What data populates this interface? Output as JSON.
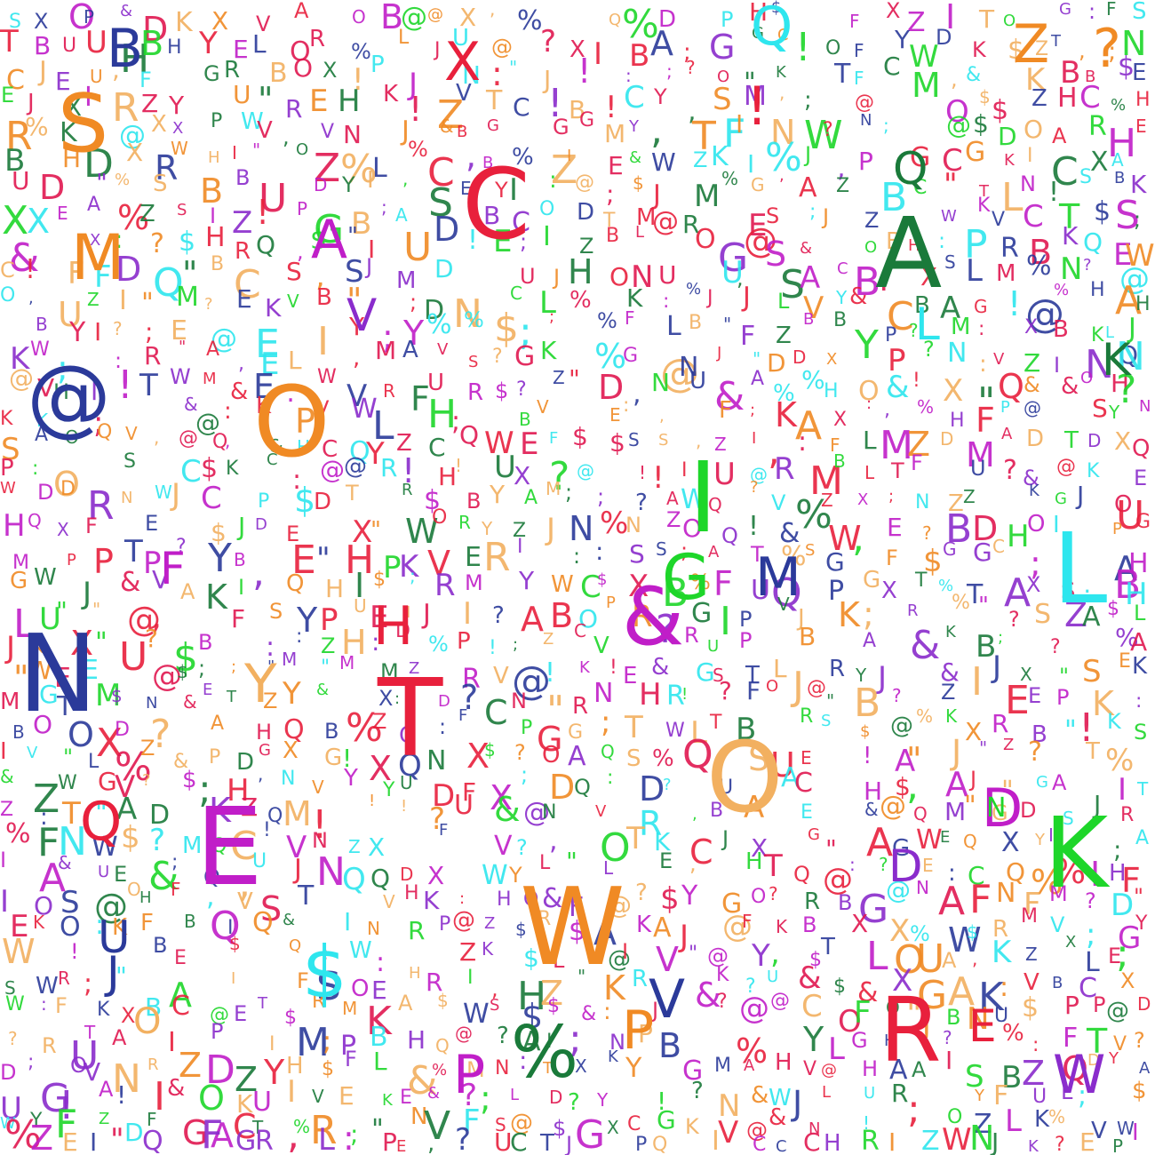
{
  "image": {
    "background": "#ffffff",
    "palette": {
      "red": "#e8203c",
      "orange": "#f08a24",
      "tan": "#f2b060",
      "magenta": "#c01ec8",
      "purple": "#8a2ccc",
      "navy": "#2b3a9a",
      "cyan": "#2ee6ee",
      "green": "#1ed62a",
      "darkgreen": "#1a7a3a",
      "crimson": "#e01850"
    },
    "prominent_glyphs": [
      {
        "char": "@",
        "color": "navy"
      },
      {
        "char": "C",
        "color": "red"
      },
      {
        "char": "A",
        "color": "darkgreen"
      },
      {
        "char": "S",
        "color": "orange"
      },
      {
        "char": "O",
        "color": "orange"
      },
      {
        "char": "O",
        "color": "tan"
      },
      {
        "char": "I",
        "color": "green"
      },
      {
        "char": "N",
        "color": "navy"
      },
      {
        "char": "T",
        "color": "red"
      },
      {
        "char": "&",
        "color": "magenta"
      },
      {
        "char": "E",
        "color": "magenta"
      },
      {
        "char": "W",
        "color": "orange"
      },
      {
        "char": "O",
        "color": "tan"
      },
      {
        "char": "R",
        "color": "red"
      },
      {
        "char": "K",
        "color": "green"
      },
      {
        "char": "L",
        "color": "cyan"
      },
      {
        "char": "%",
        "color": "darkgreen"
      },
      {
        "char": "$",
        "color": "cyan"
      },
      {
        "char": "Q",
        "color": "red"
      },
      {
        "char": "M",
        "color": "orange"
      },
      {
        "char": "Z",
        "color": "orange"
      },
      {
        "char": "B",
        "color": "navy"
      },
      {
        "char": "Q",
        "color": "cyan"
      },
      {
        "char": "P",
        "color": "orange"
      },
      {
        "char": "V",
        "color": "navy"
      },
      {
        "char": "D",
        "color": "magenta"
      },
      {
        "char": "U",
        "color": "navy"
      },
      {
        "char": "G",
        "color": "green"
      },
      {
        "char": "H",
        "color": "red"
      },
      {
        "char": "Y",
        "color": "tan"
      },
      {
        "char": "X",
        "color": "red"
      },
      {
        "char": "F",
        "color": "magenta"
      },
      {
        "char": "J",
        "color": "navy"
      },
      {
        "char": "?",
        "color": "orange"
      },
      {
        "char": "!",
        "color": "red"
      },
      {
        "char": "W",
        "color": "purple"
      },
      {
        "char": "A",
        "color": "magenta"
      },
      {
        "char": "N",
        "color": "green"
      },
      {
        "char": "Q",
        "color": "darkgreen"
      },
      {
        "char": "P",
        "color": "magenta"
      },
      {
        "char": "V",
        "color": "purple"
      },
      {
        "char": "K",
        "color": "darkgreen"
      },
      {
        "char": "D",
        "color": "purple"
      },
      {
        "char": "E",
        "color": "red"
      },
      {
        "char": "M",
        "color": "navy"
      },
      {
        "char": "L",
        "color": "cyan"
      }
    ],
    "filler_glyph_set": "ABCDEFGHIJKLMNOPQRSTUVWXYZ@&%$?!;:,\"",
    "filler_color_order": [
      "red",
      "orange",
      "tan",
      "magenta",
      "purple",
      "navy",
      "cyan",
      "green",
      "darkgreen",
      "crimson"
    ]
  }
}
